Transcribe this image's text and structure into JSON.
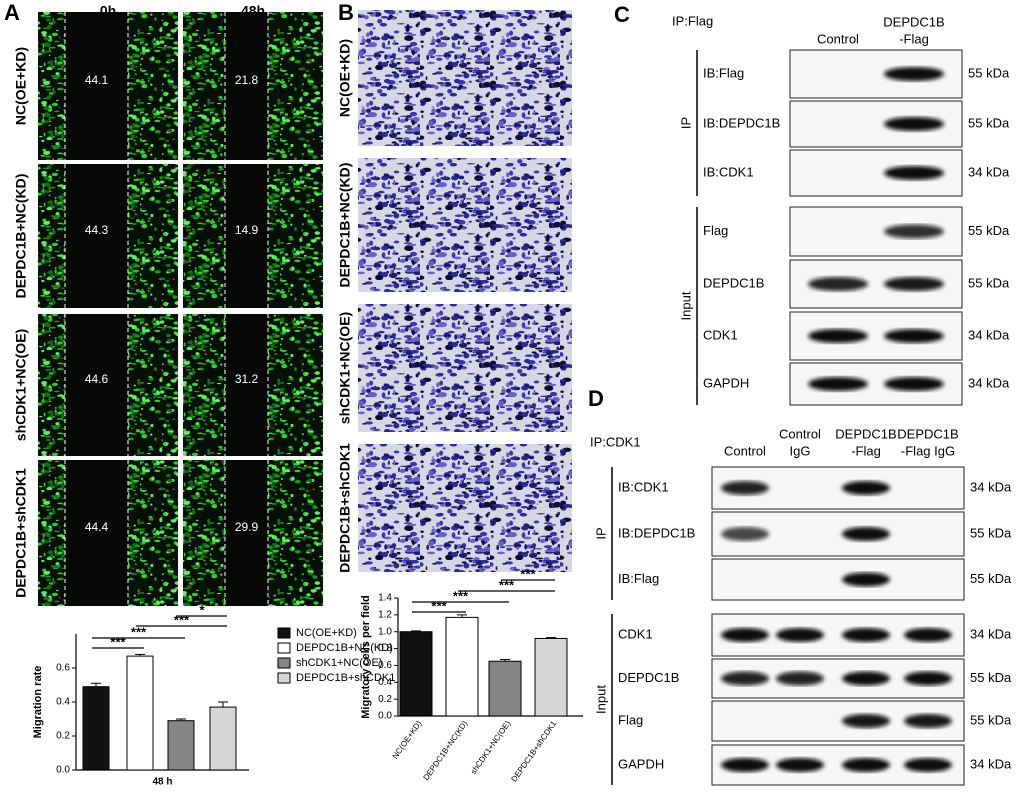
{
  "panel_a": {
    "letter": "A",
    "columns": [
      "0h",
      "48h"
    ],
    "rows": [
      {
        "label": "NC(OE+KD)",
        "gaps": [
          44.1,
          21.8
        ]
      },
      {
        "label": "DEPDC1B+NC(KD)",
        "gaps": [
          44.3,
          14.9
        ]
      },
      {
        "label": "shCDK1+NC(OE)",
        "gaps": [
          44.6,
          31.2
        ]
      },
      {
        "label": "DEPDC1B+shCDK1",
        "gaps": [
          44.4,
          29.9
        ]
      }
    ]
  },
  "panel_b": {
    "letter": "B",
    "rows": [
      "NC(OE+KD)",
      "DEPDC1B+NC(KD)",
      "shCDK1+NC(OE)",
      "DEPDC1B+shCDK1"
    ]
  },
  "chart_data": [
    {
      "type": "bar",
      "ylabel": "Migration rate",
      "xlabel": "48 h",
      "categories": [
        "NC(OE+KD)",
        "DEPDC1B+NC(KD)",
        "shCDK1+NC(OE)",
        "DEPDC1B+shCDK1"
      ],
      "colors": [
        "#111111",
        "#ffffff",
        "#858585",
        "#d6d6d6"
      ],
      "values": [
        0.49,
        0.67,
        0.29,
        0.37
      ],
      "errors": [
        0.02,
        0.01,
        0.01,
        0.03
      ],
      "ylim": [
        0,
        0.8
      ],
      "yticks": [
        {
          "value": 0,
          "label": "0.0"
        },
        0.2,
        0.4,
        0.6
      ],
      "annotations": [
        "***",
        "***",
        "***",
        "*"
      ],
      "legend": "right"
    },
    {
      "type": "bar",
      "ylabel": "Migratory cells per field",
      "categories": [
        "NC(OE+KD)",
        "DEPDC1B+NC(KD)",
        "shCDK1+NC(OE)",
        "DEPDC1B+shCDK1"
      ],
      "colors": [
        "#111111",
        "#ffffff",
        "#858585",
        "#d6d6d6"
      ],
      "values": [
        1.0,
        1.17,
        0.65,
        0.92
      ],
      "errors": [
        0.01,
        0.03,
        0.02,
        0.01
      ],
      "ylim": [
        0,
        1.4
      ],
      "yticks": [
        {
          "value": 0,
          "label": "0.0"
        },
        0.2,
        0.4,
        0.6,
        0.8,
        {
          "value": 1,
          "label": "1.0"
        },
        1.2,
        1.4
      ],
      "annotations": [
        "***",
        "***",
        "***",
        "***"
      ]
    }
  ],
  "panel_c": {
    "letter": "C",
    "title": "IP:Flag",
    "columns": [
      [
        "Control"
      ],
      [
        "DEPDC1B",
        "-Flag"
      ]
    ],
    "groups": [
      "IP",
      "Input"
    ],
    "blots": [
      {
        "label": "IB:Flag",
        "size": "55 kDa"
      },
      {
        "label": "IB:DEPDC1B",
        "size": "55 kDa"
      },
      {
        "label": "IB:CDK1",
        "size": "34 kDa"
      },
      {
        "label": "Flag",
        "size": "55 kDa"
      },
      {
        "label": "DEPDC1B",
        "size": "55 kDa"
      },
      {
        "label": "CDK1",
        "size": "34 kDa"
      },
      {
        "label": "GAPDH",
        "size": "34 kDa"
      }
    ]
  },
  "panel_d": {
    "letter": "D",
    "title": "IP:CDK1",
    "columns": [
      [
        "Control"
      ],
      [
        "Control",
        "IgG"
      ],
      [
        "DEPDC1B",
        "-Flag"
      ],
      [
        "DEPDC1B",
        "-Flag IgG"
      ]
    ],
    "groups": [
      "IP",
      "Input"
    ],
    "blots": [
      {
        "label": "IB:CDK1",
        "size": "34 kDa"
      },
      {
        "label": "IB:DEPDC1B",
        "size": "55 kDa"
      },
      {
        "label": "IB:Flag",
        "size": "55 kDa"
      },
      {
        "label": "CDK1",
        "size": "34 kDa"
      },
      {
        "label": "DEPDC1B",
        "size": "55 kDa"
      },
      {
        "label": "Flag",
        "size": "55 kDa"
      },
      {
        "label": "GAPDH",
        "size": "34 kDa"
      }
    ]
  }
}
